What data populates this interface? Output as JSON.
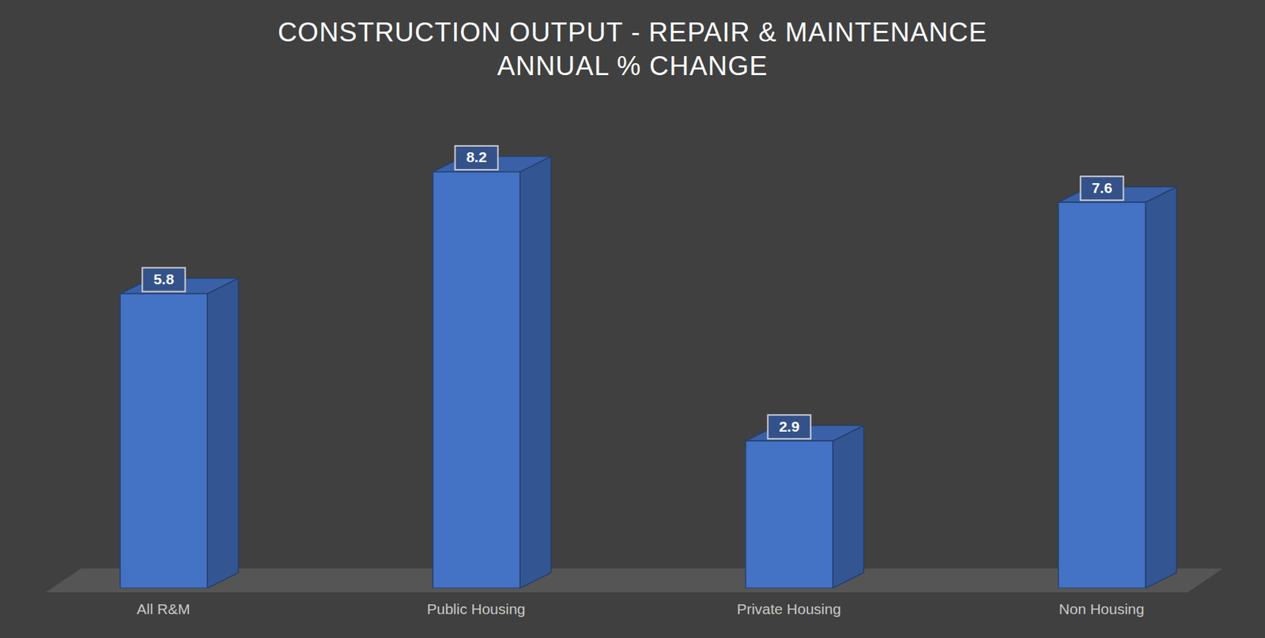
{
  "chart_data": {
    "type": "bar",
    "title": "CONSTRUCTION OUTPUT - REPAIR & MAINTENANCE\nANNUAL % CHANGE",
    "categories": [
      "All R&M",
      "Public Housing",
      "Private Housing",
      "Non Housing"
    ],
    "values": [
      5.8,
      8.2,
      2.9,
      7.6
    ],
    "color": "#4472c4",
    "ylim": [
      0,
      9
    ],
    "yticks": [],
    "grid": false,
    "data_labels": true,
    "tick_labels": "x"
  }
}
